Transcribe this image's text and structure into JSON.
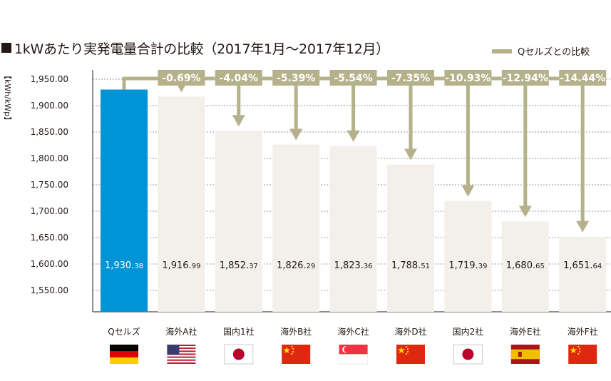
{
  "title": "1kWあたり実発電量合計の比較（2017年1月～2017年12月）",
  "legend": {
    "label": "Qセルズとの比較",
    "color": "#b5b28b"
  },
  "chart_data": {
    "type": "bar",
    "ylabel": "【kWh/kWp】",
    "yticks": [
      "1,950.00",
      "1,900.00",
      "1,850.00",
      "1,800.00",
      "1,750.00",
      "1,700.00",
      "1,650.00",
      "1,600.00",
      "1,550.00"
    ],
    "ylim": [
      1500,
      1950
    ],
    "grid": true,
    "categories": [
      "Qセルズ",
      "海外A社",
      "国内1社",
      "海外B社",
      "海外C社",
      "海外D社",
      "国内2社",
      "海外E社",
      "海外F社"
    ],
    "values": [
      1930.38,
      1916.99,
      1852.37,
      1826.29,
      1823.36,
      1788.51,
      1719.39,
      1680.65,
      1651.64
    ],
    "value_labels_main": [
      "1,930.",
      "1,916.",
      "1,852.",
      "1,826.",
      "1,823.",
      "1,788.",
      "1,719.",
      "1,680.",
      "1,651."
    ],
    "value_labels_dec": [
      "38",
      "99",
      "37",
      "29",
      "36",
      "51",
      "39",
      "65",
      "64"
    ],
    "diff_labels": [
      "",
      "-0.69%",
      "-4.04%",
      "-5.39%",
      "-5.54%",
      "-7.35%",
      "-10.93%",
      "-12.94%",
      "-14.44%"
    ],
    "flags": [
      "germany-flag",
      "usa-flag",
      "japan-flag",
      "china-flag",
      "singapore-flag",
      "china-flag",
      "japan-flag",
      "spain-flag",
      "china-flag"
    ],
    "colors": {
      "highlight": "#0094d6",
      "bar": "#f3f0ec",
      "grid": "#999999",
      "arrow": "#b5b28b"
    }
  }
}
